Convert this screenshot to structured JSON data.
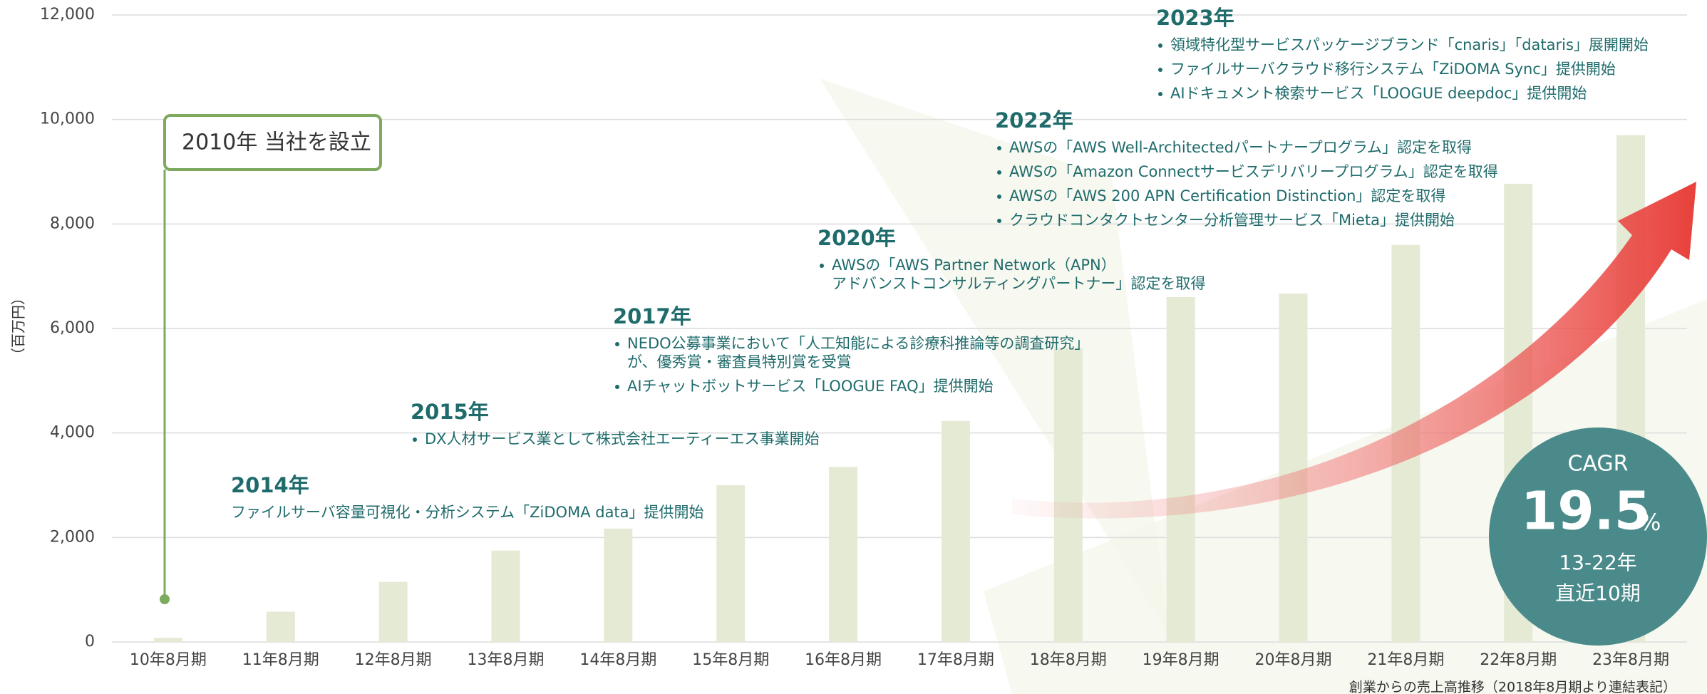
{
  "chart_data": {
    "type": "bar",
    "y_axis_label": "（百万円）",
    "footnote": "創業からの売上高推移（2018年8月期より連結表記）",
    "categories": [
      "10年8月期",
      "11年8月期",
      "12年8月期",
      "13年8月期",
      "14年8月期",
      "15年8月期",
      "16年8月期",
      "17年8月期",
      "18年8月期",
      "19年8月期",
      "20年8月期",
      "21年8月期",
      "22年8月期",
      "23年8月期"
    ],
    "values": [
      80,
      580,
      1150,
      1750,
      2170,
      3000,
      3350,
      4230,
      5620,
      6600,
      6670,
      7600,
      8770,
      9700
    ],
    "color": "#e5ead5",
    "ylim": [
      0,
      12000
    ],
    "yticks": [
      0,
      {
        "value": 2000,
        "label": "2,000"
      },
      {
        "value": 4000,
        "label": "4,000"
      },
      {
        "value": 6000,
        "label": "6,000"
      },
      {
        "value": 8000,
        "label": "8,000"
      },
      {
        "value": 10000,
        "label": "10,000"
      },
      {
        "value": 12000,
        "label": "12,000"
      }
    ],
    "grid": true,
    "founding": "2010年 当社を設立",
    "milestones": [
      {
        "year": "2014年",
        "text": "ファイルサーバ容量可視化・分析システム「ZiDOMA data」提供開始"
      },
      {
        "year": "2015年",
        "items": [
          "DX人材サービス業として株式会社エーティーエス事業開始"
        ]
      },
      {
        "year": "2017年",
        "items": [
          [
            "NEDO公募事業において「人工知能による診療科推論等の調査研究」",
            "が、優秀賞・審査員特別賞を受賞"
          ],
          "AIチャットボットサービス「LOOGUE FAQ」提供開始"
        ]
      },
      {
        "year": "2020年",
        "items": [
          [
            "AWSの「AWS Partner Network（APN）",
            "アドバンストコンサルティングパートナー」認定を取得"
          ]
        ]
      },
      {
        "year": "2022年",
        "items": [
          "AWSの「AWS Well-Architectedパートナープログラム」認定を取得",
          "AWSの「Amazon Connectサービスデリバリープログラム」認定を取得",
          "AWSの「AWS 200 APN Certification Distinction」認定を取得",
          "クラウドコンタクトセンター分析管理サービス「Mieta」提供開始"
        ]
      },
      {
        "year": "2023年",
        "items": [
          "領域特化型サービスパッケージブランド「cnaris」「dataris」展開開始",
          "ファイルサーバクラウド移行システム「ZiDOMA Sync」提供開始",
          "AIドキュメント検索サービス「LOOGUE deepdoc」提供開始"
        ]
      }
    ],
    "cagr": {
      "label": "CAGR",
      "value": "19.5",
      "unit": "%",
      "period": "13-22年",
      "note": "直近10期"
    }
  }
}
